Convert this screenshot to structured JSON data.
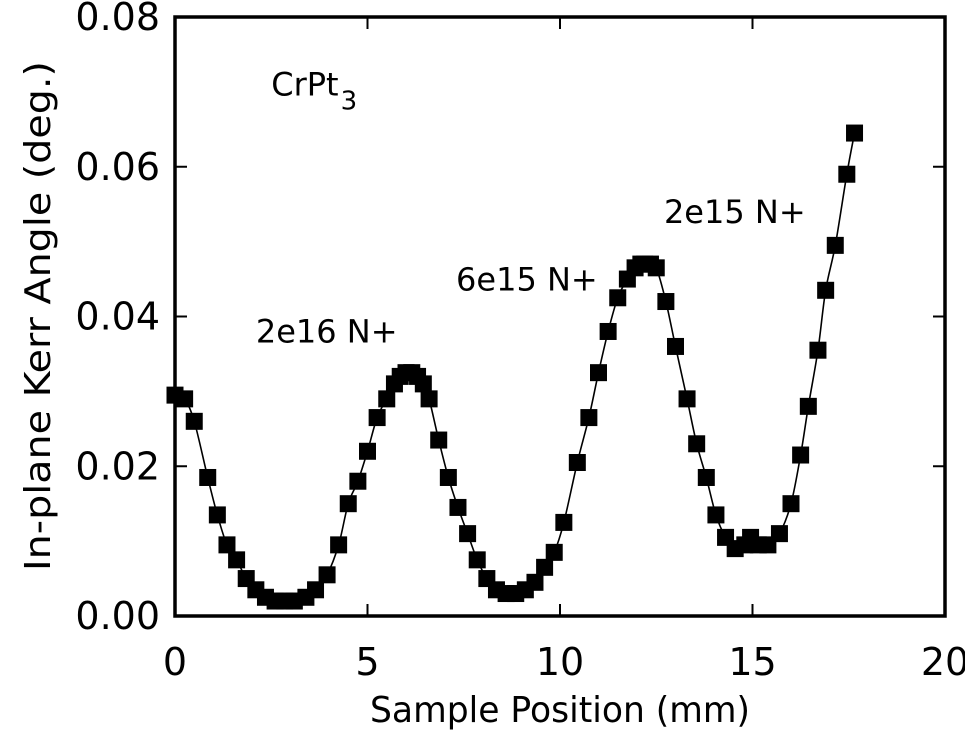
{
  "chart_data": {
    "type": "line",
    "xlabel": "Sample Position (mm)",
    "ylabel": "In-plane Kerr Angle (deg.)",
    "xlim": [
      0,
      20
    ],
    "ylim": [
      0,
      0.08
    ],
    "xticks": [
      0,
      5,
      10,
      15,
      20
    ],
    "xtick_labels": [
      "0",
      "5",
      "10",
      "15",
      "20"
    ],
    "yticks": [
      0,
      0.02,
      0.04,
      0.06,
      0.08
    ],
    "ytick_labels": [
      "0.00",
      "0.02",
      "0.04",
      "0.06",
      "0.08"
    ],
    "grid": false,
    "series": [
      {
        "marker": "filled-square",
        "color": "#000000",
        "x": [
          0.0,
          0.25,
          0.5,
          0.85,
          1.1,
          1.35,
          1.6,
          1.85,
          2.1,
          2.35,
          2.6,
          2.85,
          3.1,
          3.4,
          3.65,
          3.95,
          4.25,
          4.5,
          4.75,
          5.0,
          5.25,
          5.5,
          5.7,
          5.85,
          6.0,
          6.15,
          6.3,
          6.45,
          6.6,
          6.85,
          7.1,
          7.35,
          7.6,
          7.85,
          8.1,
          8.35,
          8.6,
          8.85,
          9.1,
          9.35,
          9.6,
          9.85,
          10.1,
          10.45,
          10.75,
          11.0,
          11.25,
          11.5,
          11.75,
          11.95,
          12.1,
          12.2,
          12.35,
          12.5,
          12.75,
          13.0,
          13.3,
          13.55,
          13.8,
          14.05,
          14.3,
          14.55,
          14.8,
          14.95,
          15.15,
          15.4,
          15.7,
          16.0,
          16.25,
          16.45,
          16.7,
          16.9,
          17.15,
          17.45,
          17.65
        ],
        "y": [
          0.0295,
          0.029,
          0.026,
          0.0185,
          0.0135,
          0.0095,
          0.0075,
          0.005,
          0.0035,
          0.0025,
          0.002,
          0.002,
          0.002,
          0.0025,
          0.0035,
          0.0055,
          0.0095,
          0.015,
          0.018,
          0.022,
          0.0265,
          0.029,
          0.031,
          0.032,
          0.0325,
          0.0325,
          0.032,
          0.031,
          0.029,
          0.0235,
          0.0185,
          0.0145,
          0.011,
          0.0075,
          0.005,
          0.0035,
          0.003,
          0.003,
          0.0035,
          0.0045,
          0.0065,
          0.0085,
          0.0125,
          0.0205,
          0.0265,
          0.0325,
          0.038,
          0.0425,
          0.045,
          0.0465,
          0.047,
          0.047,
          0.047,
          0.0465,
          0.042,
          0.036,
          0.029,
          0.023,
          0.0185,
          0.0135,
          0.0105,
          0.009,
          0.0095,
          0.0105,
          0.0095,
          0.0095,
          0.011,
          0.015,
          0.0215,
          0.028,
          0.0355,
          0.0435,
          0.0495,
          0.059,
          0.0645
        ]
      }
    ],
    "annotations": [
      {
        "text": "CrPt",
        "subscript": "3",
        "x": 2.5,
        "y": 0.0695
      },
      {
        "text": "2e16 N+",
        "x": 2.1,
        "y": 0.0365
      },
      {
        "text": "6e15 N+",
        "x": 7.3,
        "y": 0.0435
      },
      {
        "text": "2e15 N+",
        "x": 12.7,
        "y": 0.0525
      }
    ]
  }
}
